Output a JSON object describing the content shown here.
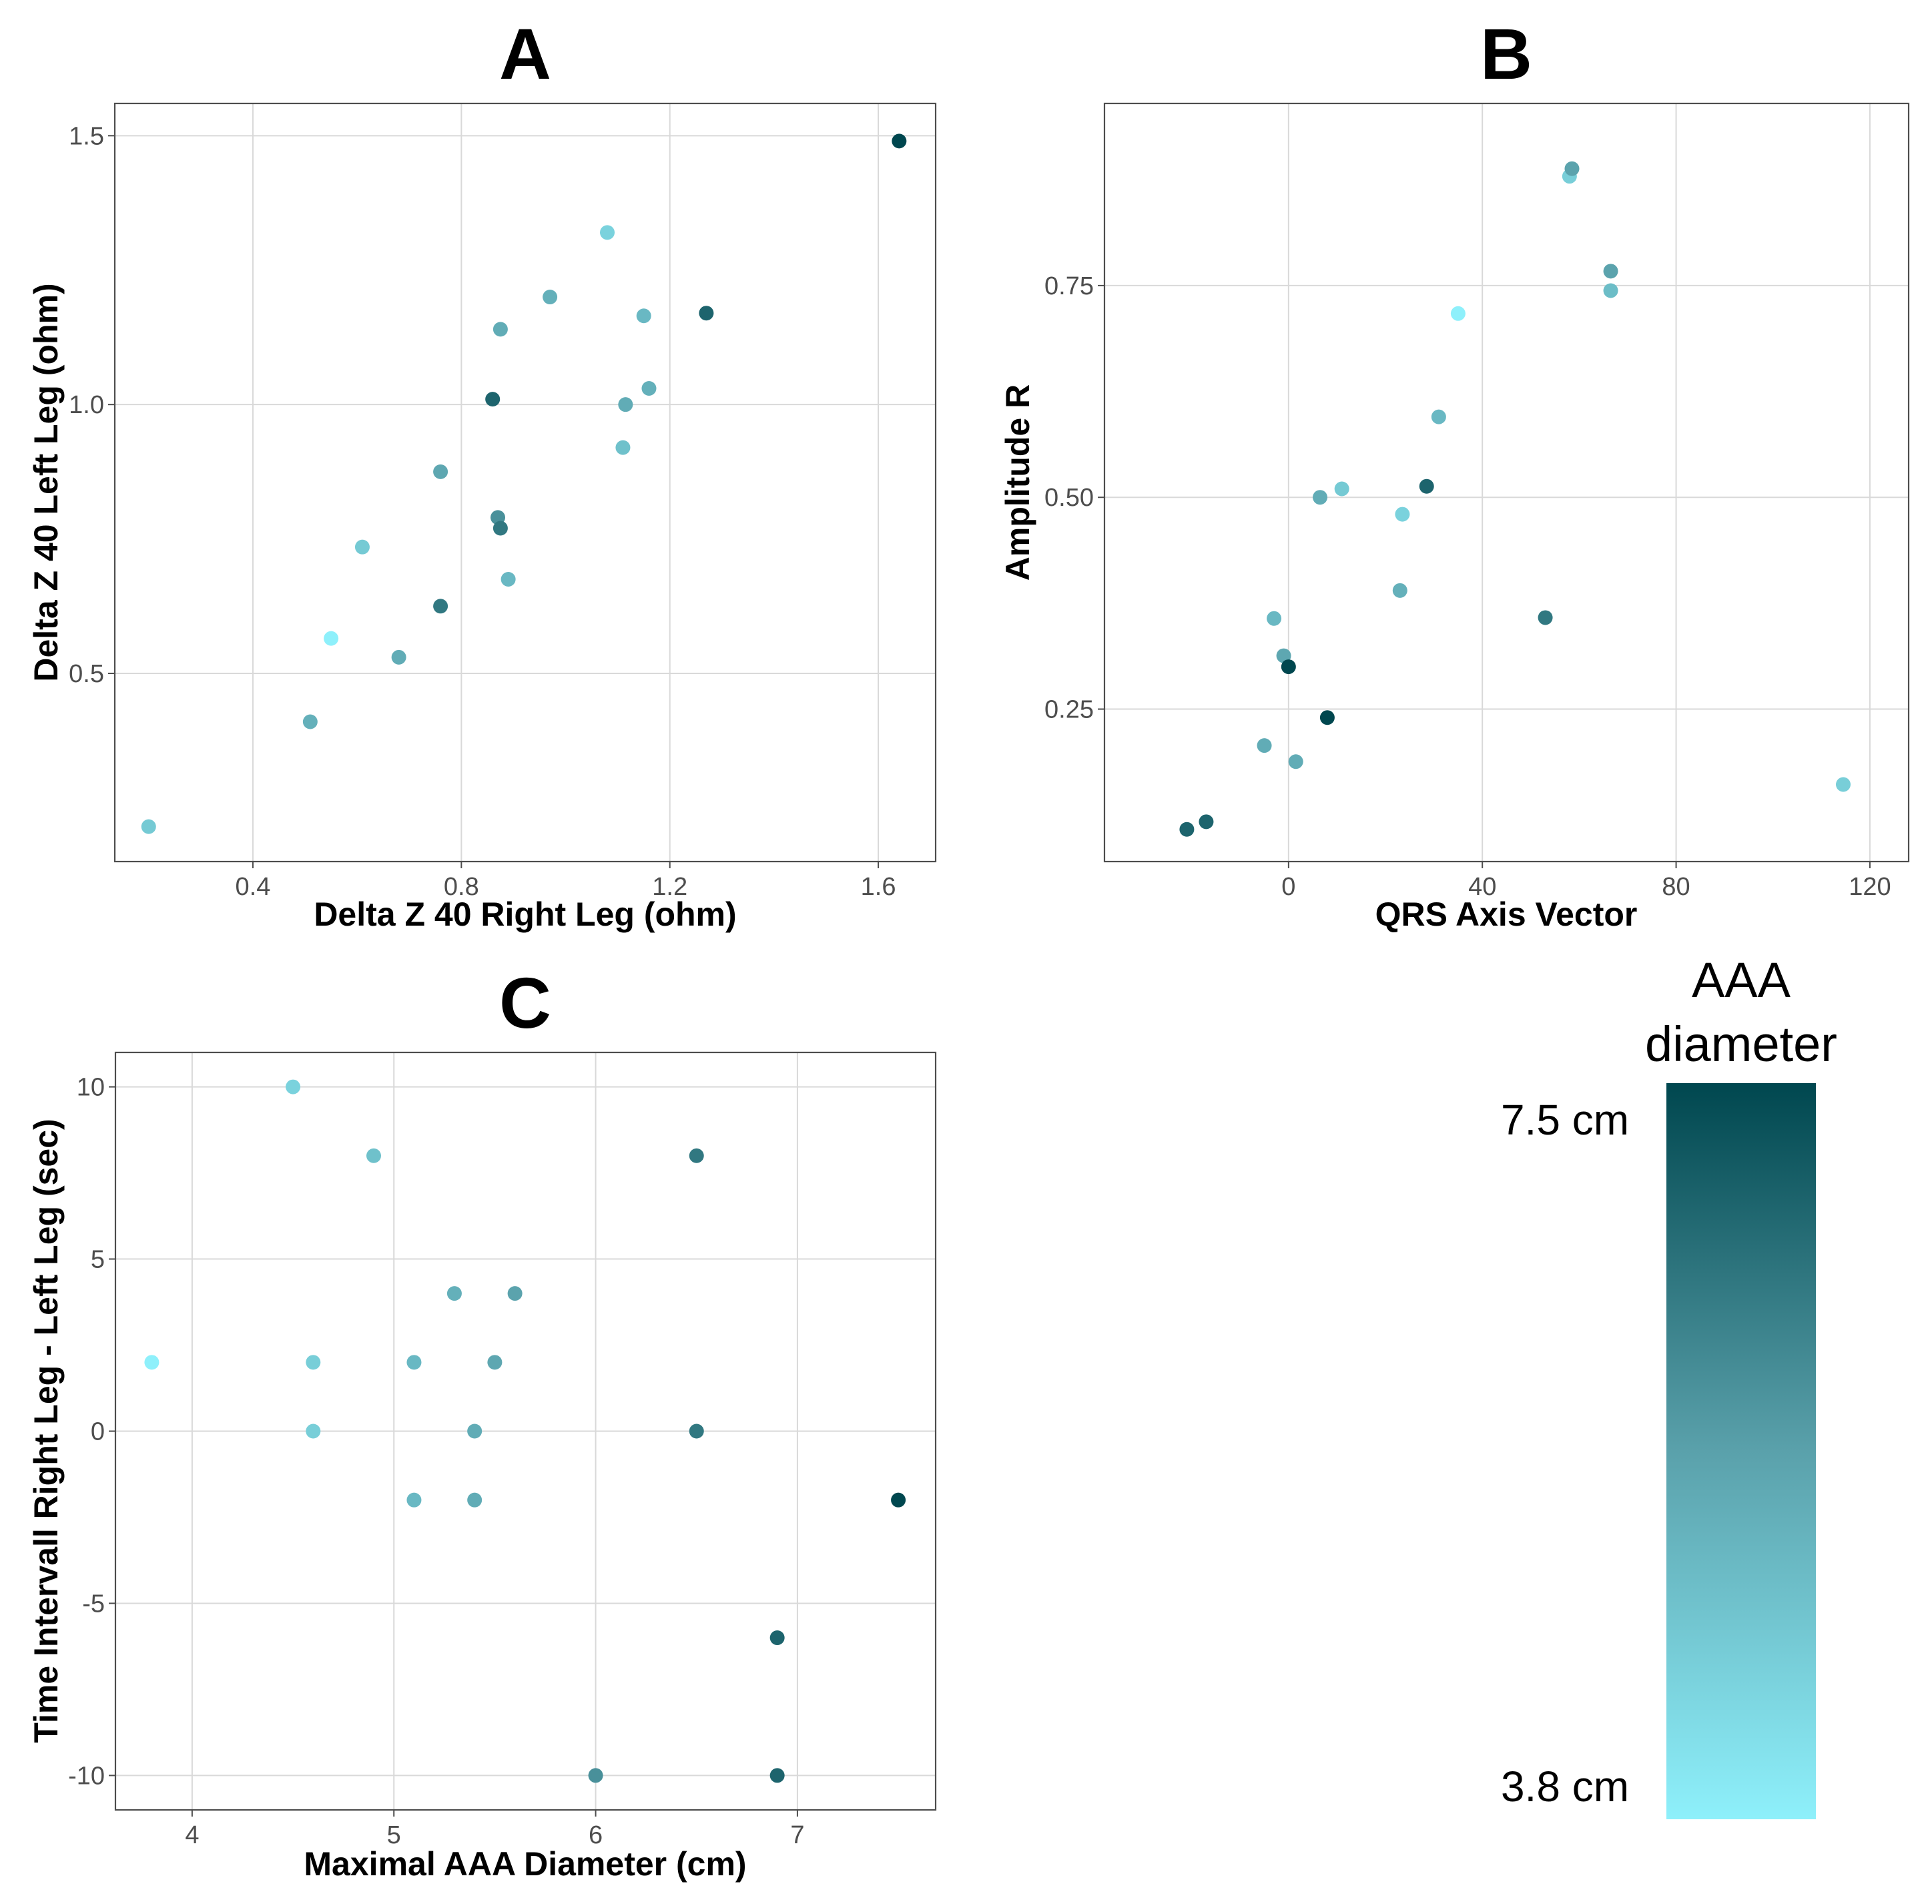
{
  "legend": {
    "title_line1": "AAA",
    "title_line2": "diameter",
    "max_label": "7.5 cm",
    "min_label": "3.8 cm",
    "max_value": 7.5,
    "min_value": 3.8,
    "color_high": "#00474f",
    "color_mid": "#5aa1ab",
    "color_low": "#8ef0fb"
  },
  "chart_data": [
    {
      "panel": "A",
      "type": "scatter",
      "title": "A",
      "xlabel": "Delta Z 40 Right Leg (ohm)",
      "ylabel": "Delta Z 40 Left Leg (ohm)",
      "xlim": [
        0.135,
        1.71
      ],
      "ylim": [
        0.15,
        1.56
      ],
      "xticks": [
        0.4,
        0.8,
        1.2,
        1.6
      ],
      "xtick_labels": [
        "0.4",
        "0.8",
        "1.2",
        "1.6"
      ],
      "yticks": [
        0.5,
        1.0,
        1.5
      ],
      "ytick_labels": [
        "0.5",
        "1.0",
        "1.5"
      ],
      "grid": true,
      "color_by": "AAA diameter (cm)",
      "points": [
        {
          "x": 0.2,
          "y": 0.215,
          "c": 4.7
        },
        {
          "x": 0.51,
          "y": 0.41,
          "c": 5.3
        },
        {
          "x": 0.55,
          "y": 0.565,
          "c": 3.8
        },
        {
          "x": 0.61,
          "y": 0.735,
          "c": 4.7
        },
        {
          "x": 0.68,
          "y": 0.53,
          "c": 5.4
        },
        {
          "x": 0.76,
          "y": 0.625,
          "c": 6.5
        },
        {
          "x": 0.76,
          "y": 0.875,
          "c": 5.5
        },
        {
          "x": 0.86,
          "y": 1.01,
          "c": 6.9
        },
        {
          "x": 0.87,
          "y": 0.79,
          "c": 6.0
        },
        {
          "x": 0.875,
          "y": 0.77,
          "c": 6.5
        },
        {
          "x": 0.875,
          "y": 1.14,
          "c": 5.4
        },
        {
          "x": 0.89,
          "y": 0.675,
          "c": 5.1
        },
        {
          "x": 0.97,
          "y": 1.2,
          "c": 5.3
        },
        {
          "x": 1.08,
          "y": 1.32,
          "c": 4.5
        },
        {
          "x": 1.11,
          "y": 0.92,
          "c": 4.9
        },
        {
          "x": 1.115,
          "y": 1.0,
          "c": 5.4
        },
        {
          "x": 1.15,
          "y": 1.165,
          "c": 5.1
        },
        {
          "x": 1.16,
          "y": 1.03,
          "c": 5.3
        },
        {
          "x": 1.27,
          "y": 1.17,
          "c": 6.9
        },
        {
          "x": 1.64,
          "y": 1.49,
          "c": 7.5
        }
      ]
    },
    {
      "panel": "B",
      "type": "scatter",
      "title": "B",
      "xlabel": "QRS Axis Vector",
      "ylabel": "Amplitude R",
      "xlim": [
        -38,
        128
      ],
      "ylim": [
        0.07,
        0.965
      ],
      "xticks": [
        0,
        40,
        80,
        120
      ],
      "xtick_labels": [
        "0",
        "40",
        "80",
        "120"
      ],
      "yticks": [
        0.25,
        0.5,
        0.75
      ],
      "ytick_labels": [
        "0.25",
        "0.50",
        "0.75"
      ],
      "grid": true,
      "color_by": "AAA diameter (cm)",
      "points": [
        {
          "x": -21,
          "y": 0.108,
          "c": 6.9
        },
        {
          "x": -17,
          "y": 0.117,
          "c": 6.9
        },
        {
          "x": -5,
          "y": 0.207,
          "c": 5.4
        },
        {
          "x": -3,
          "y": 0.357,
          "c": 5.1
        },
        {
          "x": -1,
          "y": 0.313,
          "c": 5.5
        },
        {
          "x": 0,
          "y": 0.3,
          "c": 7.5
        },
        {
          "x": 1.5,
          "y": 0.188,
          "c": 5.4
        },
        {
          "x": 6.5,
          "y": 0.5,
          "c": 5.4
        },
        {
          "x": 8,
          "y": 0.24,
          "c": 7.5
        },
        {
          "x": 11,
          "y": 0.51,
          "c": 4.7
        },
        {
          "x": 23,
          "y": 0.39,
          "c": 5.3
        },
        {
          "x": 23.5,
          "y": 0.48,
          "c": 4.5
        },
        {
          "x": 28.5,
          "y": 0.513,
          "c": 6.9
        },
        {
          "x": 31,
          "y": 0.595,
          "c": 5.1
        },
        {
          "x": 35,
          "y": 0.717,
          "c": 3.8
        },
        {
          "x": 53,
          "y": 0.358,
          "c": 6.5
        },
        {
          "x": 58,
          "y": 0.879,
          "c": 4.6
        },
        {
          "x": 58.5,
          "y": 0.888,
          "c": 5.6
        },
        {
          "x": 66.5,
          "y": 0.767,
          "c": 5.6
        },
        {
          "x": 66.5,
          "y": 0.744,
          "c": 5.0
        },
        {
          "x": 114.5,
          "y": 0.161,
          "c": 4.6
        }
      ]
    },
    {
      "panel": "C",
      "type": "scatter",
      "title": "C",
      "xlabel": "Maximal AAA Diameter (cm)",
      "ylabel": "Time Intervall Right Leg - Left Leg (sec)",
      "xlim": [
        3.62,
        7.685
      ],
      "ylim": [
        -11,
        11
      ],
      "xticks": [
        4,
        5,
        6,
        7
      ],
      "xtick_labels": [
        "4",
        "5",
        "6",
        "7"
      ],
      "yticks": [
        -10,
        -5,
        0,
        5,
        10
      ],
      "ytick_labels": [
        "-10",
        "-5",
        "0",
        "5",
        "10"
      ],
      "grid": true,
      "color_by": "AAA diameter (cm)",
      "points": [
        {
          "x": 3.8,
          "y": 2,
          "c": 3.8
        },
        {
          "x": 4.5,
          "y": 10,
          "c": 4.5
        },
        {
          "x": 4.6,
          "y": 2,
          "c": 4.6
        },
        {
          "x": 4.6,
          "y": 0,
          "c": 4.6
        },
        {
          "x": 4.9,
          "y": 8,
          "c": 4.9
        },
        {
          "x": 5.1,
          "y": 2,
          "c": 5.1
        },
        {
          "x": 5.1,
          "y": -2,
          "c": 5.1
        },
        {
          "x": 5.3,
          "y": 4,
          "c": 5.3
        },
        {
          "x": 5.4,
          "y": 0,
          "c": 5.4
        },
        {
          "x": 5.4,
          "y": -2,
          "c": 5.4
        },
        {
          "x": 5.5,
          "y": 2,
          "c": 5.5
        },
        {
          "x": 5.6,
          "y": 4,
          "c": 5.6
        },
        {
          "x": 6.0,
          "y": -10,
          "c": 6.0
        },
        {
          "x": 6.5,
          "y": 8,
          "c": 6.5
        },
        {
          "x": 6.5,
          "y": 0,
          "c": 6.5
        },
        {
          "x": 6.9,
          "y": -6,
          "c": 6.9
        },
        {
          "x": 6.9,
          "y": -10,
          "c": 6.9
        },
        {
          "x": 7.5,
          "y": -2,
          "c": 7.5
        }
      ]
    }
  ]
}
